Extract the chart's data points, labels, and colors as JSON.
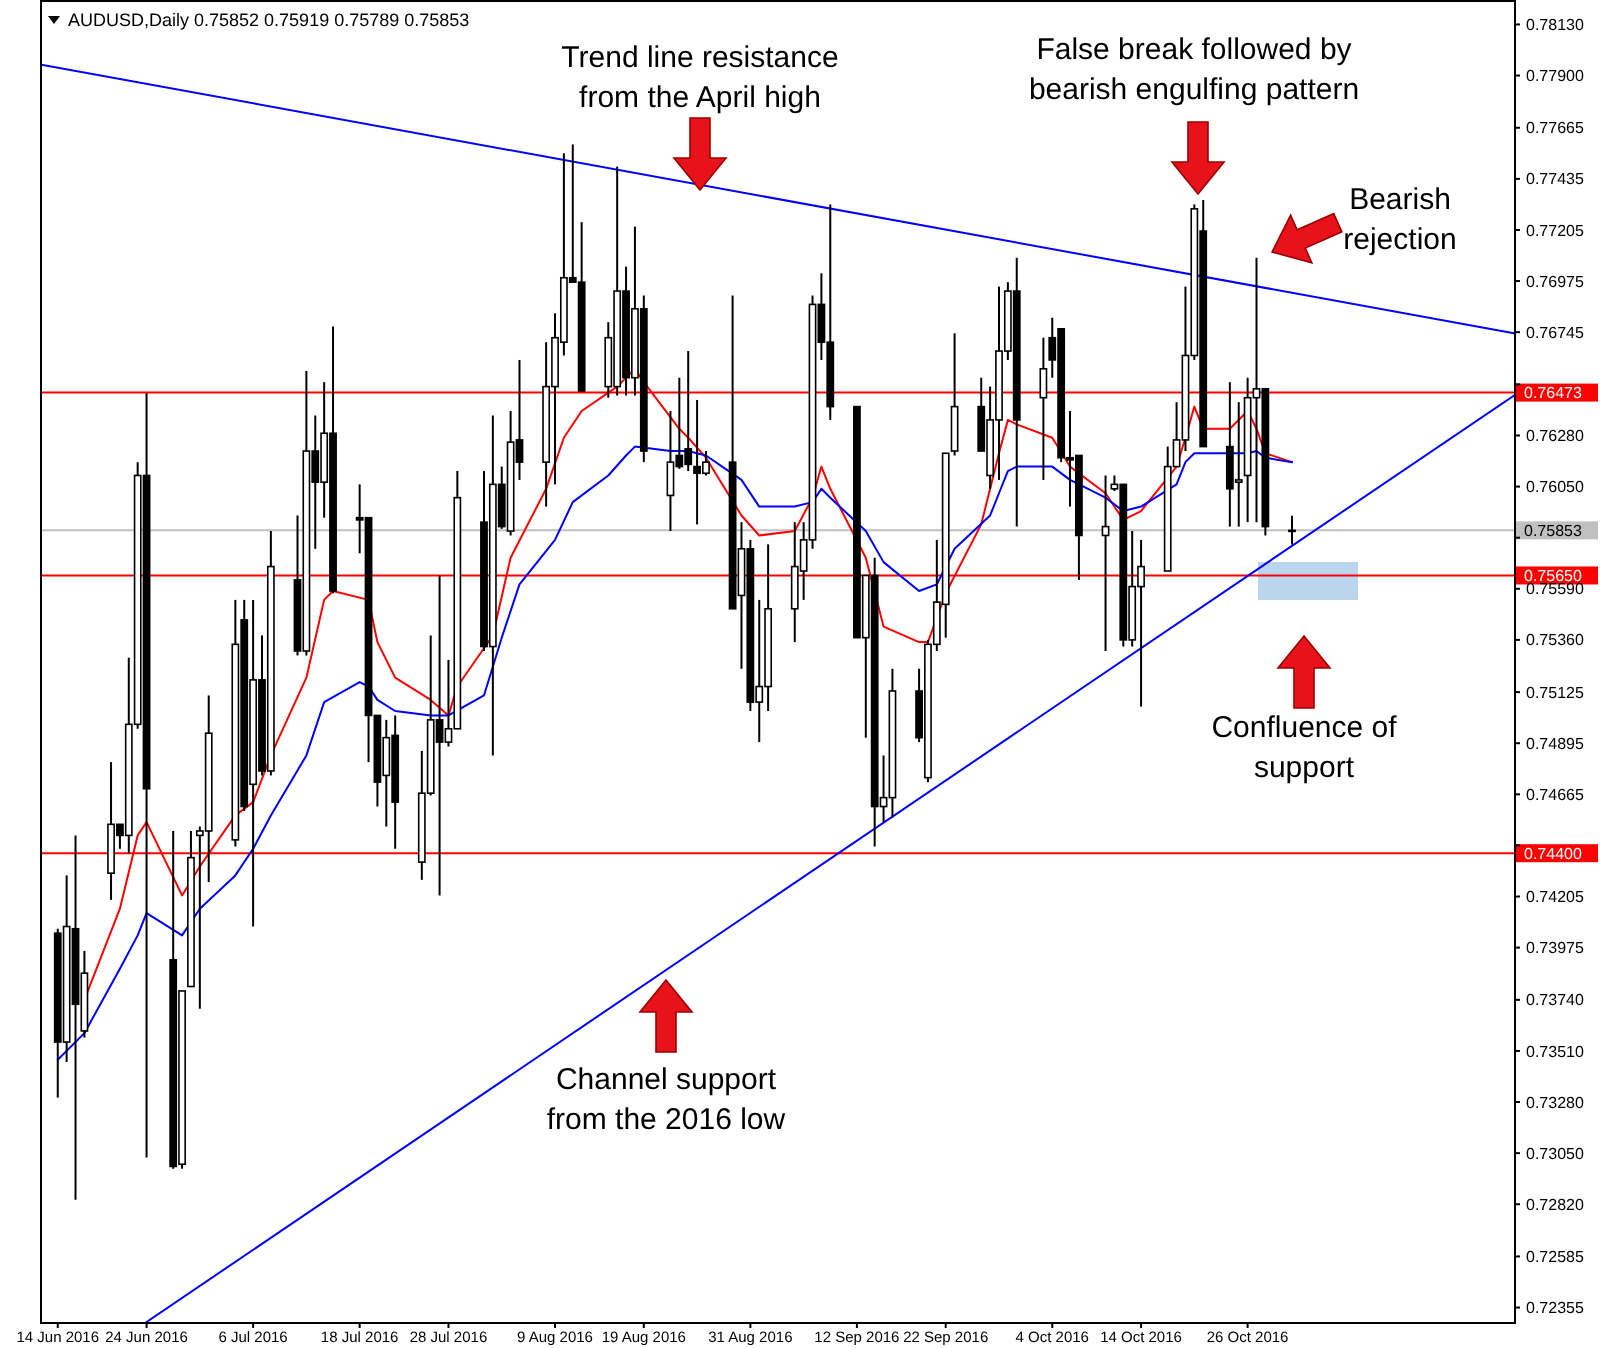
{
  "chart_data": {
    "type": "candlestick",
    "title": "AUDUSD,Daily  0.75852 0.75919 0.75789 0.75853",
    "x": [
      "2016-06-14",
      "2016-06-15",
      "2016-06-16",
      "2016-06-17",
      "2016-06-20",
      "2016-06-21",
      "2016-06-22",
      "2016-06-23",
      "2016-06-24",
      "2016-06-27",
      "2016-06-28",
      "2016-06-29",
      "2016-06-30",
      "2016-07-01",
      "2016-07-04",
      "2016-07-05",
      "2016-07-06",
      "2016-07-07",
      "2016-07-08",
      "2016-07-11",
      "2016-07-12",
      "2016-07-13",
      "2016-07-14",
      "2016-07-15",
      "2016-07-18",
      "2016-07-19",
      "2016-07-20",
      "2016-07-21",
      "2016-07-22",
      "2016-07-25",
      "2016-07-26",
      "2016-07-27",
      "2016-07-28",
      "2016-07-29",
      "2016-08-01",
      "2016-08-02",
      "2016-08-03",
      "2016-08-04",
      "2016-08-05",
      "2016-08-08",
      "2016-08-09",
      "2016-08-10",
      "2016-08-11",
      "2016-08-12",
      "2016-08-15",
      "2016-08-16",
      "2016-08-17",
      "2016-08-18",
      "2016-08-19",
      "2016-08-22",
      "2016-08-23",
      "2016-08-24",
      "2016-08-25",
      "2016-08-26",
      "2016-08-29",
      "2016-08-30",
      "2016-08-31",
      "2016-09-01",
      "2016-09-02",
      "2016-09-05",
      "2016-09-06",
      "2016-09-07",
      "2016-09-08",
      "2016-09-09",
      "2016-09-12",
      "2016-09-13",
      "2016-09-14",
      "2016-09-15",
      "2016-09-16",
      "2016-09-19",
      "2016-09-20",
      "2016-09-21",
      "2016-09-22",
      "2016-09-23",
      "2016-09-26",
      "2016-09-27",
      "2016-09-28",
      "2016-09-29",
      "2016-09-30",
      "2016-10-03",
      "2016-10-04",
      "2016-10-05",
      "2016-10-06",
      "2016-10-07",
      "2016-10-10",
      "2016-10-11",
      "2016-10-12",
      "2016-10-13",
      "2016-10-14",
      "2016-10-17",
      "2016-10-18",
      "2016-10-19",
      "2016-10-20",
      "2016-10-21",
      "2016-10-24",
      "2016-10-25",
      "2016-10-26",
      "2016-10-27",
      "2016-10-28",
      "2016-10-31"
    ],
    "ohlc": [
      [
        0.7404,
        0.7406,
        0.733,
        0.7355
      ],
      [
        0.7355,
        0.743,
        0.7346,
        0.7407
      ],
      [
        0.7406,
        0.7448,
        0.7284,
        0.7372
      ],
      [
        0.736,
        0.7396,
        0.7357,
        0.7386
      ],
      [
        0.7431,
        0.7481,
        0.7419,
        0.7453
      ],
      [
        0.7453,
        0.7453,
        0.7442,
        0.7448
      ],
      [
        0.7448,
        0.7528,
        0.744,
        0.7498
      ],
      [
        0.7498,
        0.7616,
        0.7496,
        0.761
      ],
      [
        0.761,
        0.7647,
        0.7303,
        0.7469
      ],
      [
        0.7392,
        0.745,
        0.7298,
        0.7299
      ],
      [
        0.73,
        0.7378,
        0.7298,
        0.7378
      ],
      [
        0.738,
        0.745,
        0.738,
        0.7438
      ],
      [
        0.7448,
        0.7452,
        0.737,
        0.745
      ],
      [
        0.745,
        0.7511,
        0.7427,
        0.7494
      ],
      [
        0.7446,
        0.7554,
        0.7443,
        0.7534
      ],
      [
        0.7545,
        0.7554,
        0.7459,
        0.7461
      ],
      [
        0.7471,
        0.7554,
        0.7407,
        0.7518
      ],
      [
        0.7518,
        0.7538,
        0.7475,
        0.7477
      ],
      [
        0.7477,
        0.7585,
        0.7475,
        0.7569
      ],
      [
        0.7563,
        0.7592,
        0.7529,
        0.7531
      ],
      [
        0.7531,
        0.7657,
        0.7529,
        0.7621
      ],
      [
        0.7621,
        0.7637,
        0.7577,
        0.7607
      ],
      [
        0.7607,
        0.7652,
        0.7591,
        0.7629
      ],
      [
        0.7629,
        0.7677,
        0.7557,
        0.7558
      ],
      [
        0.7591,
        0.7606,
        0.7575,
        0.759
      ],
      [
        0.7591,
        0.7591,
        0.7481,
        0.7502
      ],
      [
        0.7502,
        0.7502,
        0.7461,
        0.7472
      ],
      [
        0.7475,
        0.75,
        0.7452,
        0.7492
      ],
      [
        0.7493,
        0.7502,
        0.7442,
        0.7463
      ],
      [
        0.7436,
        0.7486,
        0.7428,
        0.7467
      ],
      [
        0.7467,
        0.7538,
        0.7466,
        0.75
      ],
      [
        0.75,
        0.7565,
        0.7421,
        0.749
      ],
      [
        0.749,
        0.7527,
        0.7488,
        0.7496
      ],
      [
        0.7496,
        0.7612,
        0.7496,
        0.76
      ],
      [
        0.7589,
        0.7612,
        0.7531,
        0.7533
      ],
      [
        0.7533,
        0.7637,
        0.7484,
        0.7606
      ],
      [
        0.7606,
        0.7614,
        0.7586,
        0.7587
      ],
      [
        0.7585,
        0.7639,
        0.7583,
        0.7625
      ],
      [
        0.7626,
        0.7662,
        0.7608,
        0.7616
      ],
      [
        0.7616,
        0.767,
        0.7596,
        0.765
      ],
      [
        0.765,
        0.7683,
        0.7606,
        0.7672
      ],
      [
        0.767,
        0.7755,
        0.7664,
        0.7699
      ],
      [
        0.7699,
        0.7759,
        0.7697,
        0.7697
      ],
      [
        0.7697,
        0.7724,
        0.7648,
        0.7648
      ],
      [
        0.765,
        0.7679,
        0.7645,
        0.7672
      ],
      [
        0.765,
        0.7749,
        0.7646,
        0.7693
      ],
      [
        0.7693,
        0.7704,
        0.7646,
        0.7654
      ],
      [
        0.7654,
        0.7722,
        0.7646,
        0.7685
      ],
      [
        0.7685,
        0.7691,
        0.7616,
        0.7621
      ],
      [
        0.7601,
        0.7639,
        0.7585,
        0.7616
      ],
      [
        0.7619,
        0.7654,
        0.7613,
        0.7614
      ],
      [
        0.7622,
        0.7666,
        0.7612,
        0.7615
      ],
      [
        0.7614,
        0.7644,
        0.7588,
        0.7611
      ],
      [
        0.7611,
        0.7621,
        0.761,
        0.7616
      ],
      [
        0.7616,
        0.7691,
        0.755,
        0.755
      ],
      [
        0.7556,
        0.7589,
        0.7523,
        0.7577
      ],
      [
        0.7577,
        0.7581,
        0.7504,
        0.7508
      ],
      [
        0.7508,
        0.7554,
        0.749,
        0.7515
      ],
      [
        0.7515,
        0.7579,
        0.7504,
        0.755
      ],
      [
        0.755,
        0.7589,
        0.7535,
        0.7569
      ],
      [
        0.7567,
        0.7589,
        0.7554,
        0.7581
      ],
      [
        0.7581,
        0.7691,
        0.7577,
        0.7687
      ],
      [
        0.7687,
        0.7701,
        0.7662,
        0.767
      ],
      [
        0.767,
        0.7732,
        0.7635,
        0.7641
      ],
      [
        0.7641,
        0.7641,
        0.7537,
        0.7537
      ],
      [
        0.7537,
        0.7565,
        0.7492,
        0.7565
      ],
      [
        0.7565,
        0.7573,
        0.7443,
        0.7461
      ],
      [
        0.7461,
        0.7484,
        0.7454,
        0.7465
      ],
      [
        0.7465,
        0.7523,
        0.7456,
        0.7513
      ],
      [
        0.7513,
        0.7523,
        0.749,
        0.7492
      ],
      [
        0.7474,
        0.7536,
        0.7472,
        0.7534
      ],
      [
        0.7534,
        0.7581,
        0.7531,
        0.7553
      ],
      [
        0.7552,
        0.762,
        0.7537,
        0.762
      ],
      [
        0.7621,
        0.7674,
        0.7619,
        0.7641
      ],
      [
        0.7641,
        0.7654,
        0.7621,
        0.7621
      ],
      [
        0.761,
        0.765,
        0.7604,
        0.7635
      ],
      [
        0.7635,
        0.7695,
        0.7608,
        0.7666
      ],
      [
        0.7666,
        0.7697,
        0.7662,
        0.7693
      ],
      [
        0.7693,
        0.7708,
        0.7587,
        0.7635
      ],
      [
        0.7645,
        0.7672,
        0.7608,
        0.7658
      ],
      [
        0.7672,
        0.7681,
        0.7654,
        0.7662
      ],
      [
        0.7676,
        0.7676,
        0.7616,
        0.7618
      ],
      [
        0.7618,
        0.7639,
        0.7596,
        0.7617
      ],
      [
        0.7619,
        0.7619,
        0.7563,
        0.7583
      ],
      [
        0.7583,
        0.761,
        0.7531,
        0.7587
      ],
      [
        0.7604,
        0.761,
        0.7603,
        0.7606
      ],
      [
        0.7606,
        0.7606,
        0.7533,
        0.7536
      ],
      [
        0.7536,
        0.7585,
        0.7533,
        0.756
      ],
      [
        0.756,
        0.7581,
        0.7506,
        0.7569
      ],
      [
        0.7567,
        0.7623,
        0.7567,
        0.7614
      ],
      [
        0.7614,
        0.7643,
        0.7614,
        0.7626
      ],
      [
        0.7626,
        0.7695,
        0.7621,
        0.7664
      ],
      [
        0.7664,
        0.7732,
        0.7662,
        0.773
      ],
      [
        0.772,
        0.7734,
        0.7623,
        0.7623
      ],
      [
        0.7623,
        0.7652,
        0.7587,
        0.7604
      ],
      [
        0.7607,
        0.7643,
        0.7587,
        0.7608
      ],
      [
        0.761,
        0.7654,
        0.7589,
        0.7645
      ],
      [
        0.7645,
        0.7708,
        0.7589,
        0.7649
      ],
      [
        0.7649,
        0.7649,
        0.7583,
        0.7587
      ],
      [
        0.75852,
        0.75919,
        0.75789,
        0.75853
      ]
    ],
    "series": [
      {
        "type": "line",
        "color": "#ff0000",
        "x": [
          "2016-06-17",
          "2016-06-21",
          "2016-06-23",
          "2016-06-24",
          "2016-06-28",
          "2016-06-30",
          "2016-07-04",
          "2016-07-06",
          "2016-07-08",
          "2016-07-12",
          "2016-07-14",
          "2016-07-15",
          "2016-07-19",
          "2016-07-20",
          "2016-07-22",
          "2016-07-26",
          "2016-07-28",
          "2016-07-29",
          "2016-08-02",
          "2016-08-04",
          "2016-08-08",
          "2016-08-10",
          "2016-08-12",
          "2016-08-16",
          "2016-08-18",
          "2016-08-19",
          "2016-08-23",
          "2016-08-24",
          "2016-08-26",
          "2016-08-30",
          "2016-09-01",
          "2016-09-05",
          "2016-09-07",
          "2016-09-08",
          "2016-09-09",
          "2016-09-13",
          "2016-09-15",
          "2016-09-19",
          "2016-09-20",
          "2016-09-22",
          "2016-09-26",
          "2016-09-28",
          "2016-09-29",
          "2016-09-30",
          "2016-10-04",
          "2016-10-06",
          "2016-10-10",
          "2016-10-12",
          "2016-10-14",
          "2016-10-18",
          "2016-10-19",
          "2016-10-20",
          "2016-10-21",
          "2016-10-24",
          "2016-10-26",
          "2016-10-27",
          "2016-10-28",
          "2016-10-31"
        ],
        "values": [
          0.7374,
          0.7415,
          0.7448,
          0.7454,
          0.7421,
          0.7434,
          0.7457,
          0.7463,
          0.7484,
          0.7519,
          0.7554,
          0.7558,
          0.7554,
          0.7535,
          0.7519,
          0.7509,
          0.7502,
          0.7515,
          0.7538,
          0.7573,
          0.7604,
          0.7627,
          0.7639,
          0.765,
          0.7658,
          0.7652,
          0.7631,
          0.7627,
          0.7618,
          0.7592,
          0.7583,
          0.7585,
          0.76,
          0.7614,
          0.7604,
          0.7573,
          0.7542,
          0.7535,
          0.7535,
          0.7557,
          0.7588,
          0.762,
          0.7635,
          0.7633,
          0.7627,
          0.7614,
          0.7602,
          0.759,
          0.7594,
          0.7614,
          0.7627,
          0.7641,
          0.7631,
          0.7631,
          0.7639,
          0.7631,
          0.762,
          0.7616
        ]
      },
      {
        "type": "line",
        "color": "#0000ff",
        "x": [
          "2016-06-14",
          "2016-06-17",
          "2016-06-21",
          "2016-06-23",
          "2016-06-24",
          "2016-06-28",
          "2016-06-30",
          "2016-07-04",
          "2016-07-06",
          "2016-07-08",
          "2016-07-12",
          "2016-07-14",
          "2016-07-18",
          "2016-07-19",
          "2016-07-20",
          "2016-07-22",
          "2016-07-26",
          "2016-07-28",
          "2016-08-01",
          "2016-08-03",
          "2016-08-05",
          "2016-08-09",
          "2016-08-11",
          "2016-08-15",
          "2016-08-17",
          "2016-08-18",
          "2016-08-22",
          "2016-08-24",
          "2016-08-26",
          "2016-08-30",
          "2016-09-01",
          "2016-09-05",
          "2016-09-07",
          "2016-09-08",
          "2016-09-09",
          "2016-09-13",
          "2016-09-15",
          "2016-09-19",
          "2016-09-21",
          "2016-09-23",
          "2016-09-27",
          "2016-09-28",
          "2016-09-29",
          "2016-09-30",
          "2016-10-04",
          "2016-10-06",
          "2016-10-10",
          "2016-10-12",
          "2016-10-14",
          "2016-10-18",
          "2016-10-19",
          "2016-10-20",
          "2016-10-24",
          "2016-10-26",
          "2016-10-27",
          "2016-10-28",
          "2016-10-31"
        ],
        "values": [
          0.7347,
          0.7359,
          0.7388,
          0.7403,
          0.7413,
          0.7403,
          0.7415,
          0.743,
          0.7442,
          0.7457,
          0.7484,
          0.7508,
          0.7517,
          0.7515,
          0.7509,
          0.7504,
          0.7502,
          0.7502,
          0.7511,
          0.7537,
          0.7561,
          0.7581,
          0.7598,
          0.761,
          0.7619,
          0.7623,
          0.7621,
          0.7621,
          0.7619,
          0.7608,
          0.7596,
          0.7596,
          0.7598,
          0.7604,
          0.76,
          0.7585,
          0.7571,
          0.7558,
          0.7561,
          0.7577,
          0.7592,
          0.7602,
          0.7612,
          0.7614,
          0.7614,
          0.7608,
          0.76,
          0.7594,
          0.7596,
          0.7606,
          0.7616,
          0.762,
          0.762,
          0.762,
          0.7621,
          0.7618,
          0.7616
        ]
      },
      {
        "type": "line",
        "color": "#0000ff",
        "x": [
          "2016-06-12",
          "2016-11-25"
        ],
        "values": [
          0.7795,
          0.7674
        ]
      },
      {
        "type": "line",
        "color": "#0000ff",
        "x": [
          "2016-06-24",
          "2016-11-25"
        ],
        "values": [
          0.7229,
          0.7646
        ]
      }
    ],
    "xlim": [
      "2016-06-12",
      "2016-11-25"
    ],
    "xticks": [
      {
        "value": "2016-06-14",
        "label": "14 Jun 2016"
      },
      {
        "value": "2016-06-24",
        "label": "24 Jun 2016"
      },
      {
        "value": "2016-07-06",
        "label": "6 Jul 2016"
      },
      {
        "value": "2016-07-18",
        "label": "18 Jul 2016"
      },
      {
        "value": "2016-07-28",
        "label": "28 Jul 2016"
      },
      {
        "value": "2016-08-09",
        "label": "9 Aug 2016"
      },
      {
        "value": "2016-08-19",
        "label": "19 Aug 2016"
      },
      {
        "value": "2016-08-31",
        "label": "31 Aug 2016"
      },
      {
        "value": "2016-09-12",
        "label": "12 Sep 2016"
      },
      {
        "value": "2016-09-22",
        "label": "22 Sep 2016"
      },
      {
        "value": "2016-10-04",
        "label": "4 Oct 2016"
      },
      {
        "value": "2016-10-14",
        "label": "14 Oct 2016"
      },
      {
        "value": "2016-10-26",
        "label": "26 Oct 2016"
      }
    ],
    "ylim": [
      0.7229,
      0.7824
    ],
    "yticks": [
      {
        "value": 0.7813,
        "label": "0.78130"
      },
      {
        "value": 0.779,
        "label": "0.77900"
      },
      {
        "value": 0.77665,
        "label": "0.77665"
      },
      {
        "value": 0.77435,
        "label": "0.77435"
      },
      {
        "value": 0.77205,
        "label": "0.77205"
      },
      {
        "value": 0.76975,
        "label": "0.76975"
      },
      {
        "value": 0.76745,
        "label": "0.76745"
      },
      {
        "value": 0.7651,
        "label": null
      },
      {
        "value": 0.7628,
        "label": "0.76280"
      },
      {
        "value": 0.7605,
        "label": "0.76050"
      },
      {
        "value": 0.7582,
        "label": null
      },
      {
        "value": 0.7559,
        "label": "0.75590"
      },
      {
        "value": 0.7536,
        "label": "0.75360"
      },
      {
        "value": 0.75125,
        "label": "0.75125"
      },
      {
        "value": 0.74895,
        "label": "0.74895"
      },
      {
        "value": 0.74665,
        "label": "0.74665"
      },
      {
        "value": 0.74435,
        "label": null
      },
      {
        "value": 0.74205,
        "label": "0.74205"
      },
      {
        "value": 0.73975,
        "label": "0.73975"
      },
      {
        "value": 0.7374,
        "label": "0.73740"
      },
      {
        "value": 0.7351,
        "label": "0.73510"
      },
      {
        "value": 0.7328,
        "label": "0.73280"
      },
      {
        "value": 0.7305,
        "label": "0.73050"
      },
      {
        "value": 0.7282,
        "label": "0.72820"
      },
      {
        "value": 0.72585,
        "label": "0.72585"
      },
      {
        "value": 0.72355,
        "label": "0.72355"
      }
    ],
    "ref_lines": [
      {
        "axis": "y",
        "value": 0.76473,
        "label": "0.76473",
        "color": "#ff0000"
      },
      {
        "axis": "y",
        "value": 0.75853,
        "label": "0.75853",
        "color": "#c0c0c0"
      },
      {
        "axis": "y",
        "value": 0.7565,
        "label": "0.75650",
        "color": "#ff0000"
      },
      {
        "axis": "y",
        "value": 0.744,
        "label": "0.74400",
        "color": "#ff0000"
      }
    ],
    "annotations": [
      "Trend line resistance\nfrom the April high",
      "False break followed by\nbearish engulfing pattern",
      "Bearish\nrejection",
      "Confluence of\nsupport",
      "Channel support\nfrom the 2016 low"
    ]
  }
}
